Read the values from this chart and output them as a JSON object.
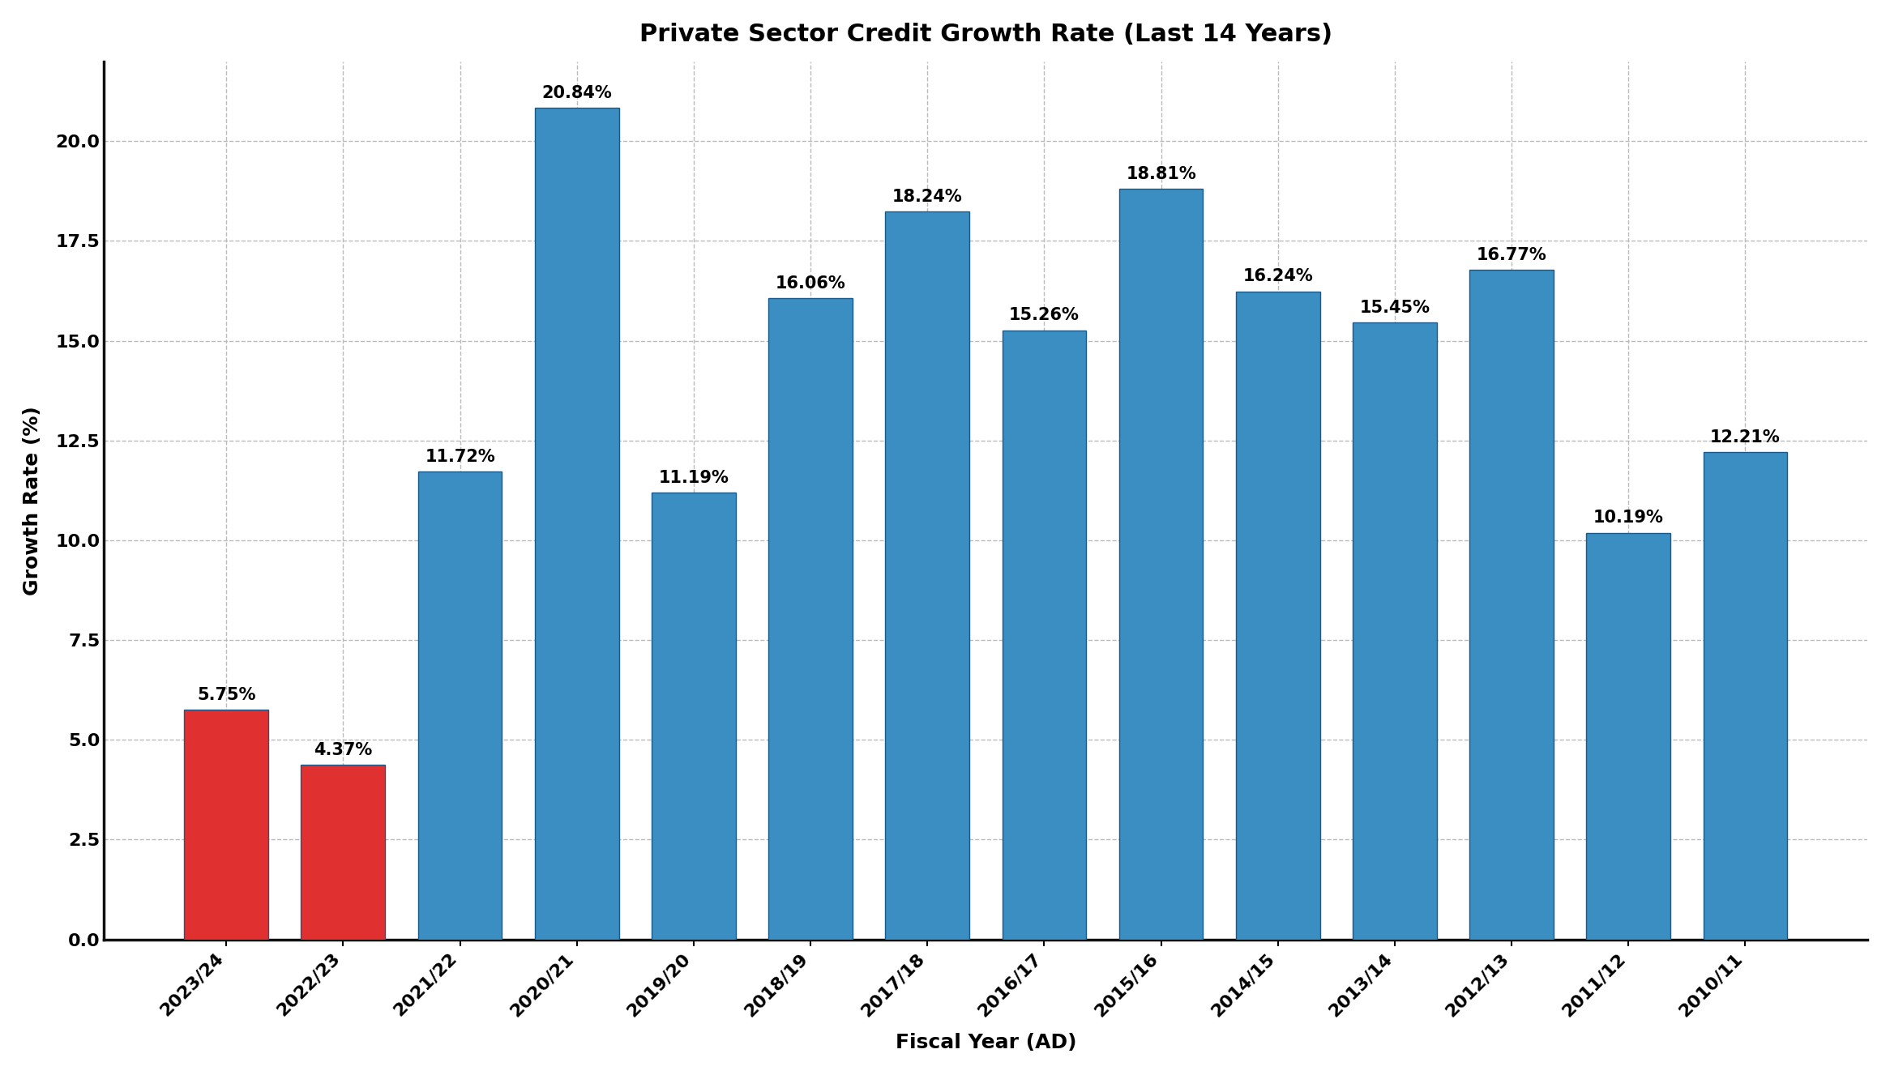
{
  "title": "Private Sector Credit Growth Rate (Last 14 Years)",
  "xlabel": "Fiscal Year (AD)",
  "ylabel": "Growth Rate (%)",
  "categories": [
    "2023/24",
    "2022/23",
    "2021/22",
    "2020/21",
    "2019/20",
    "2018/19",
    "2017/18",
    "2016/17",
    "2015/16",
    "2014/15",
    "2013/14",
    "2012/13",
    "2011/12",
    "2010/11"
  ],
  "values": [
    5.75,
    4.37,
    11.72,
    20.84,
    11.19,
    16.06,
    18.24,
    15.26,
    18.81,
    16.24,
    15.45,
    16.77,
    10.19,
    12.21
  ],
  "bar_colors": [
    "#e03030",
    "#e03030",
    "#3b8ec2",
    "#3b8ec2",
    "#3b8ec2",
    "#3b8ec2",
    "#3b8ec2",
    "#3b8ec2",
    "#3b8ec2",
    "#3b8ec2",
    "#3b8ec2",
    "#3b8ec2",
    "#3b8ec2",
    "#3b8ec2"
  ],
  "bar_edge_color": "#1a5a8a",
  "ylim": [
    0,
    22
  ],
  "yticks": [
    0.0,
    2.5,
    5.0,
    7.5,
    10.0,
    12.5,
    15.0,
    17.5,
    20.0
  ],
  "title_fontsize": 22,
  "label_fontsize": 18,
  "tick_fontsize": 16,
  "annotation_fontsize": 15,
  "background_color": "#ffffff",
  "grid_color": "#bbbbbb",
  "bar_width": 0.72
}
